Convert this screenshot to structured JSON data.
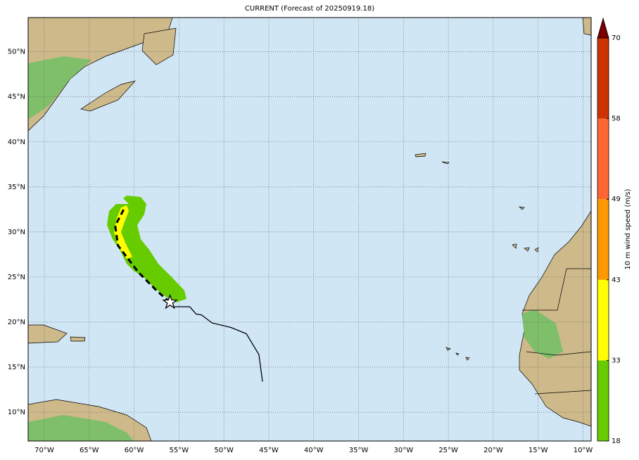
{
  "chart_data": {
    "type": "map",
    "title": "CURRENT (Forecast of 20250919.18)",
    "xlim": [
      -71.8,
      -9.1
    ],
    "ylim": [
      6.8,
      53.8
    ],
    "xticks": [
      {
        "value": -70,
        "label": "70°W"
      },
      {
        "value": -65,
        "label": "65°W"
      },
      {
        "value": -60,
        "label": "60°W"
      },
      {
        "value": -55,
        "label": "55°W"
      },
      {
        "value": -50,
        "label": "50°W"
      },
      {
        "value": -45,
        "label": "45°W"
      },
      {
        "value": -40,
        "label": "40°W"
      },
      {
        "value": -35,
        "label": "35°W"
      },
      {
        "value": -30,
        "label": "30°W"
      },
      {
        "value": -25,
        "label": "25°W"
      },
      {
        "value": -20,
        "label": "20°W"
      },
      {
        "value": -15,
        "label": "15°W"
      },
      {
        "value": -10,
        "label": "10°W"
      }
    ],
    "yticks": [
      {
        "value": 10,
        "label": "10°N"
      },
      {
        "value": 15,
        "label": "15°N"
      },
      {
        "value": 20,
        "label": "20°N"
      },
      {
        "value": 25,
        "label": "25°N"
      },
      {
        "value": 30,
        "label": "30°N"
      },
      {
        "value": 35,
        "label": "35°N"
      },
      {
        "value": 40,
        "label": "40°N"
      },
      {
        "value": 45,
        "label": "45°N"
      },
      {
        "value": 50,
        "label": "50°N"
      }
    ],
    "grid": true,
    "past_track": {
      "lon": [
        -45.7,
        -46.1,
        -47.5,
        -49.2,
        -51.3,
        -52.5,
        -53.1,
        -53.8,
        -55.6
      ],
      "lat": [
        13.4,
        16.4,
        18.7,
        19.4,
        19.9,
        20.8,
        20.9,
        21.7,
        21.7
      ]
    },
    "forecast_track": {
      "lon": [
        -56.0,
        -57.5,
        -59.5,
        -60.8,
        -61.8,
        -62.1,
        -61.0
      ],
      "lat": [
        22.2,
        23.5,
        25.5,
        27.2,
        28.5,
        30.7,
        32.8
      ]
    },
    "colorbar": {
      "label": "10 m wind speed (m/s)",
      "levels": [
        18,
        33,
        43,
        49,
        58,
        70
      ],
      "colors": [
        "#66cc00",
        "#ffff00",
        "#ff9900",
        "#ff6633",
        "#cc3300"
      ],
      "extend_color": "#7a0000"
    }
  }
}
